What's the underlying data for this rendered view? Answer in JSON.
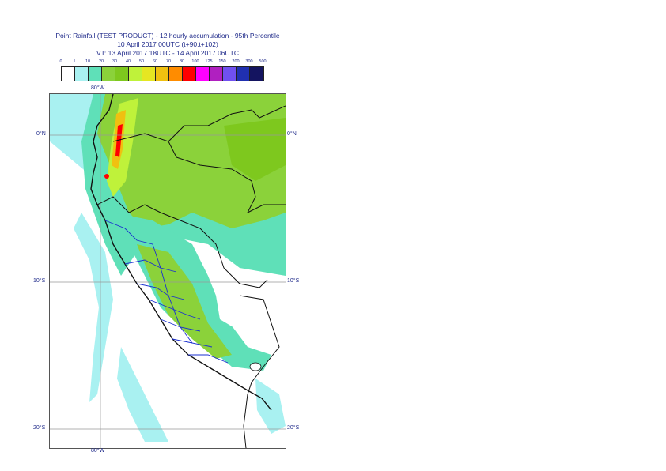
{
  "titles": {
    "line1": "Point Rainfall (TEST PRODUCT) - 12 hourly accumulation - 95th Percentile",
    "line2": "10 April 2017 00UTC (t+90,t+102)",
    "line3": "VT: 13 April 2017 18UTC - 14 April 2017 06UTC"
  },
  "legend": {
    "labels": [
      "0",
      "1",
      "10",
      "20",
      "30",
      "40",
      "50",
      "60",
      "70",
      "80",
      "100",
      "125",
      "150",
      "200",
      "300",
      "500"
    ],
    "colors": [
      "#ffffff",
      "#a9f1f1",
      "#5fe0b8",
      "#8bd23a",
      "#7ec81e",
      "#bff23a",
      "#e6e622",
      "#f0c010",
      "#ff8c00",
      "#ff0000",
      "#ff00ff",
      "#b020c0",
      "#7050f0",
      "#2030b0",
      "#141460"
    ]
  },
  "map": {
    "lon_labels_top": [
      "80°W"
    ],
    "lon_labels_bottom": [
      "80°W"
    ],
    "lat_labels_left": [
      "0°N",
      "10°S",
      "20°S"
    ],
    "lat_labels_right": [
      "0°N",
      "10°S",
      "20°S"
    ]
  }
}
